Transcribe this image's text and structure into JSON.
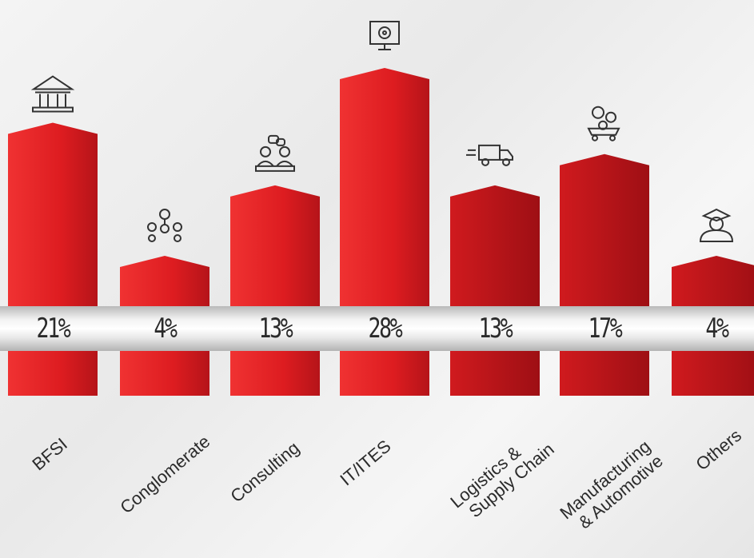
{
  "chart_data": {
    "type": "bar",
    "title": "",
    "categories": [
      "BFSI",
      "Conglomerate",
      "Consulting",
      "IT/ITES",
      "Logistics & Supply Chain",
      "Manufacturing & Automotive",
      "Others"
    ],
    "category_lines": [
      [
        "BFSI"
      ],
      [
        "Conglomerate"
      ],
      [
        "Consulting"
      ],
      [
        "IT/ITES"
      ],
      [
        "Logistics &",
        "Supply Chain"
      ],
      [
        "Manufacturing",
        "& Automotive"
      ],
      [
        "Others"
      ]
    ],
    "values": [
      21,
      4,
      13,
      28,
      13,
      17,
      4
    ],
    "value_labels": [
      "21%",
      "4%",
      "13%",
      "28%",
      "13%",
      "17%",
      "4%"
    ],
    "icons": [
      "bank-icon",
      "organization-icon",
      "meeting-icon",
      "monitor-gear-icon",
      "truck-icon",
      "gears-cart-icon",
      "graduate-icon"
    ],
    "colors": {
      "bar_light": "#ef2b2b",
      "bar_dark": "#b31217",
      "title": "#e8191d"
    },
    "legend": "none",
    "grid": false
  }
}
